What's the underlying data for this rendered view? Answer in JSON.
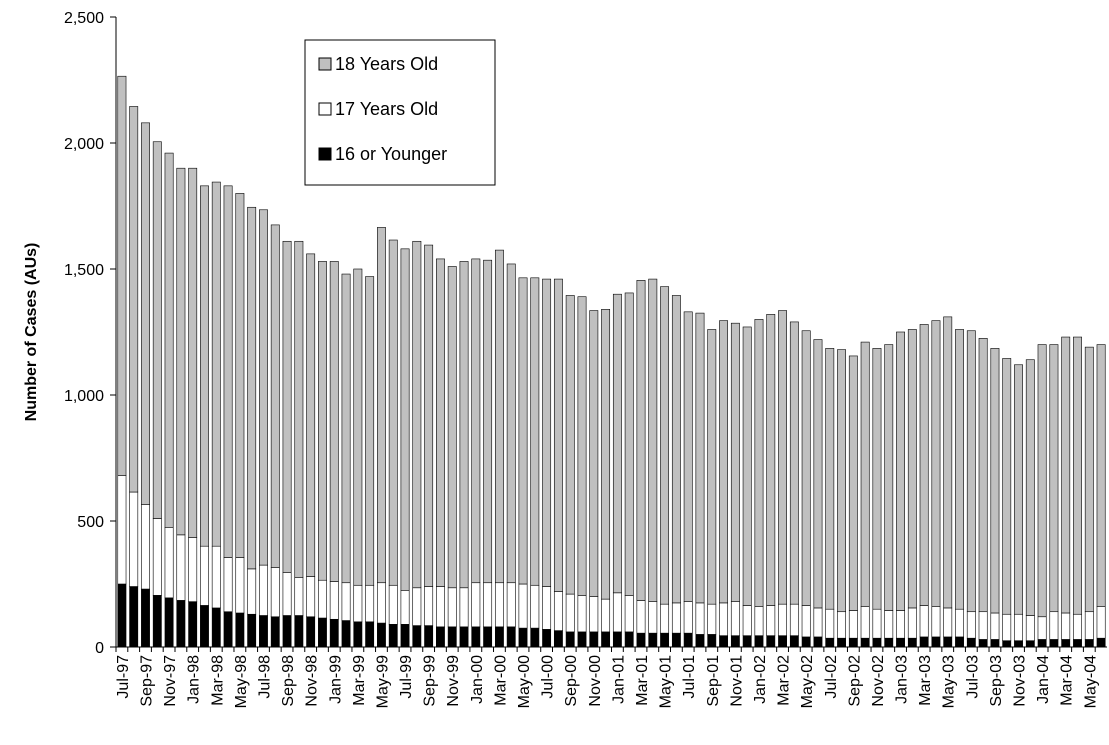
{
  "chart_data": {
    "type": "stacked_bar",
    "ylabel": "Number of Cases (AUs)",
    "categories": [
      "Jul-97",
      null,
      "Sep-97",
      null,
      "Nov-97",
      null,
      "Jan-98",
      null,
      "Mar-98",
      null,
      "May-98",
      null,
      "Jul-98",
      null,
      "Sep-98",
      null,
      "Nov-98",
      null,
      "Jan-99",
      null,
      "Mar-99",
      null,
      "May-99",
      null,
      "Jul-99",
      null,
      "Sep-99",
      null,
      "Nov-99",
      null,
      "Jan-00",
      null,
      "Mar-00",
      null,
      "May-00",
      null,
      "Jul-00",
      null,
      "Sep-00",
      null,
      "Nov-00",
      null,
      "Jan-01",
      null,
      "Mar-01",
      null,
      "May-01",
      null,
      "Jul-01",
      null,
      "Sep-01",
      null,
      "Nov-01",
      null,
      "Jan-02",
      null,
      "Mar-02",
      null,
      "May-02",
      null,
      "Jul-02",
      null,
      "Sep-02",
      null,
      "Nov-02",
      null,
      "Jan-03",
      null,
      "Mar-03",
      null,
      "May-03",
      null,
      "Jul-03",
      null,
      "Sep-03",
      null,
      "Nov-03",
      null,
      "Jan-04",
      null,
      "Mar-04",
      null,
      "May-04",
      null
    ],
    "series": [
      {
        "name": "16 or Younger",
        "color": "#000000",
        "values": [
          250,
          240,
          230,
          205,
          195,
          185,
          180,
          165,
          155,
          140,
          135,
          130,
          125,
          120,
          125,
          125,
          120,
          115,
          110,
          105,
          100,
          100,
          95,
          90,
          90,
          85,
          85,
          80,
          80,
          80,
          80,
          80,
          80,
          80,
          75,
          75,
          70,
          65,
          60,
          60,
          60,
          60,
          60,
          60,
          55,
          55,
          55,
          55,
          55,
          50,
          50,
          45,
          45,
          45,
          45,
          45,
          45,
          45,
          40,
          40,
          35,
          35,
          35,
          35,
          35,
          35,
          35,
          35,
          40,
          40,
          40,
          40,
          35,
          30,
          30,
          25,
          25,
          25,
          30,
          30,
          30,
          30,
          30,
          35
        ]
      },
      {
        "name": "17 Years Old",
        "color": "#ffffff",
        "values": [
          430,
          375,
          335,
          305,
          280,
          260,
          255,
          235,
          245,
          215,
          220,
          180,
          200,
          195,
          170,
          150,
          160,
          150,
          150,
          150,
          145,
          145,
          160,
          155,
          135,
          150,
          155,
          160,
          155,
          155,
          175,
          175,
          175,
          175,
          175,
          170,
          170,
          155,
          150,
          145,
          140,
          130,
          155,
          145,
          130,
          125,
          115,
          120,
          125,
          125,
          120,
          130,
          135,
          120,
          115,
          120,
          125,
          125,
          125,
          115,
          115,
          105,
          110,
          125,
          115,
          110,
          110,
          120,
          125,
          120,
          115,
          110,
          105,
          110,
          105,
          105,
          105,
          100,
          90,
          110,
          105,
          100,
          110,
          125
        ]
      },
      {
        "name": "18 Years Old",
        "color": "#c0c0c0",
        "values": [
          1585,
          1530,
          1515,
          1495,
          1485,
          1455,
          1465,
          1430,
          1445,
          1475,
          1445,
          1435,
          1410,
          1360,
          1315,
          1335,
          1280,
          1265,
          1270,
          1225,
          1255,
          1225,
          1410,
          1370,
          1355,
          1375,
          1355,
          1300,
          1275,
          1295,
          1285,
          1280,
          1320,
          1265,
          1215,
          1220,
          1220,
          1240,
          1185,
          1185,
          1135,
          1150,
          1185,
          1200,
          1270,
          1280,
          1260,
          1220,
          1150,
          1150,
          1090,
          1120,
          1105,
          1105,
          1140,
          1155,
          1165,
          1120,
          1090,
          1065,
          1035,
          1040,
          1010,
          1050,
          1035,
          1055,
          1105,
          1105,
          1115,
          1135,
          1155,
          1110,
          1115,
          1085,
          1050,
          1015,
          990,
          1015,
          1080,
          1060,
          1095,
          1100,
          1050,
          1040
        ]
      }
    ],
    "ylim": [
      0,
      2500
    ],
    "yticks": [
      0,
      500,
      {
        "value": 1000,
        "label": "1,000"
      },
      {
        "value": 1500,
        "label": "1,500"
      },
      {
        "value": 2000,
        "label": "2,000"
      },
      {
        "value": 2500,
        "label": "2,500"
      }
    ]
  }
}
